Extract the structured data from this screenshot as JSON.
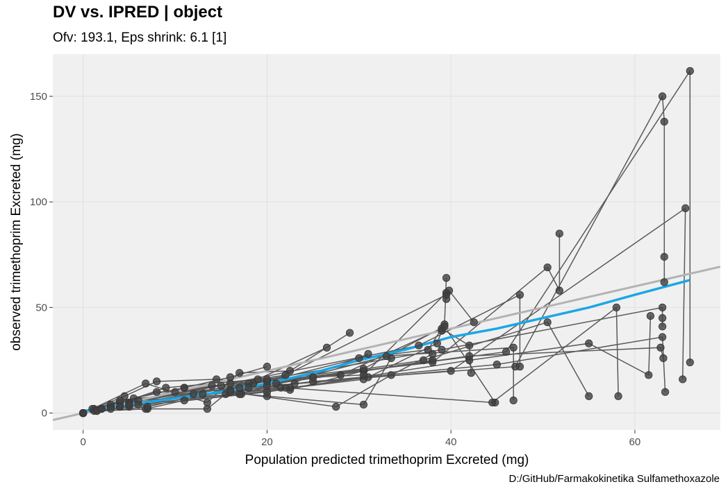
{
  "header": {
    "title": "DV vs. IPRED | object",
    "subtitle": "Ofv: 193.1, Eps shrink: 6.1 [1]",
    "caption": "D:/GitHub/Farmakokinetika Sulfamethoxazole"
  },
  "chart_data": {
    "type": "scatter",
    "xlabel": "Population predicted trimethoprim Excreted (mg)",
    "ylabel": "observed trimethoprim Excreted (mg)",
    "xlim": [
      -3.3,
      69.3
    ],
    "ylim": [
      -8,
      170
    ],
    "xticks": [
      0,
      20,
      40,
      60
    ],
    "yticks": [
      0,
      50,
      100,
      150
    ],
    "grid": true,
    "colors": {
      "panel": "#f0f0f0",
      "grid": "#e0e0e0",
      "points": "#404040",
      "lines": "#595959",
      "identity": "#b3b3b3",
      "smooth": "#1aa7e6"
    },
    "identity_line": {
      "slope": 1,
      "intercept": 0
    },
    "smooth": {
      "x": [
        0,
        5,
        10,
        15,
        20,
        25,
        30,
        35,
        40,
        45,
        50,
        55,
        60,
        66
      ],
      "y": [
        1,
        4,
        7,
        10,
        14,
        19,
        25,
        30,
        36,
        40,
        45,
        50,
        56,
        63
      ]
    },
    "subjects": [
      {
        "x": [
          0,
          1.2,
          5.5,
          11,
          16,
          20
        ],
        "y": [
          0,
          2,
          7,
          12,
          17,
          22
        ]
      },
      {
        "x": [
          0,
          1.5,
          7,
          13.5,
          15.5,
          26.5
        ],
        "y": [
          0,
          1,
          2,
          2,
          9,
          31
        ]
      },
      {
        "x": [
          0,
          4.5,
          8,
          14.5,
          20,
          29
        ],
        "y": [
          0,
          8,
          15,
          16,
          13,
          38
        ]
      },
      {
        "x": [
          0,
          1,
          6.8,
          13.5,
          17,
          22.5
        ],
        "y": [
          0,
          2,
          14,
          5,
          19,
          20
        ]
      },
      {
        "x": [
          0,
          2,
          8,
          16,
          21.5,
          31
        ],
        "y": [
          0,
          2,
          10,
          11,
          12,
          28
        ]
      },
      {
        "x": [
          0,
          1.2,
          6.8,
          11,
          17.2,
          30.5
        ],
        "y": [
          0,
          1,
          2,
          6,
          9,
          16
        ]
      },
      {
        "x": [
          0,
          7,
          18.5,
          22.5,
          30.5,
          38
        ],
        "y": [
          0,
          3,
          14,
          11,
          20,
          25
        ]
      },
      {
        "x": [
          0,
          4,
          11,
          20,
          30.5,
          33.5
        ],
        "y": [
          0,
          3,
          12,
          8,
          4,
          26
        ]
      },
      {
        "x": [
          0,
          5,
          16,
          27.5,
          33.5,
          38
        ],
        "y": [
          0,
          4,
          10,
          3,
          18,
          28
        ]
      },
      {
        "x": [
          0,
          2,
          13,
          22.5,
          31,
          38.5,
          39
        ],
        "y": [
          0,
          2,
          9,
          12,
          17,
          33,
          39
        ]
      },
      {
        "x": [
          0,
          3,
          12,
          20,
          30,
          37.5,
          39.3,
          39.5
        ],
        "y": [
          0,
          3,
          9,
          15,
          26,
          30,
          42,
          64
        ]
      },
      {
        "x": [
          0,
          1.5,
          9,
          19,
          30.5,
          39.5,
          39.5
        ],
        "y": [
          0,
          1,
          12,
          16,
          18,
          57,
          54
        ]
      },
      {
        "x": [
          0,
          2,
          10,
          22,
          39.5,
          39.8,
          42.5
        ],
        "y": [
          0,
          2,
          10,
          18,
          56,
          58,
          43
        ]
      },
      {
        "x": [
          0,
          3,
          14,
          28,
          39,
          42,
          42.2
        ],
        "y": [
          0,
          4,
          13,
          18,
          40,
          32,
          19
        ]
      },
      {
        "x": [
          0,
          5,
          15,
          30.5,
          39.3,
          44.8
        ],
        "y": [
          0,
          5,
          13,
          21,
          41,
          5
        ]
      },
      {
        "x": [
          0,
          6,
          17,
          33,
          46.8,
          46.8
        ],
        "y": [
          0,
          6,
          9,
          27,
          31,
          6
        ]
      },
      {
        "x": [
          0,
          4,
          16,
          36.5,
          47.5,
          47.5
        ],
        "y": [
          0,
          5,
          14,
          32,
          56,
          22
        ]
      },
      {
        "x": [
          0,
          5,
          18,
          38,
          50.5,
          51.8,
          51.8
        ],
        "y": [
          0,
          5,
          14,
          24,
          69,
          58,
          85
        ]
      },
      {
        "x": [
          0,
          4,
          17,
          37,
          50.5,
          55
        ],
        "y": [
          0,
          6,
          12,
          25,
          43,
          8
        ]
      },
      {
        "x": [
          0,
          6,
          22,
          44.5,
          58,
          58.2
        ],
        "y": [
          0,
          4,
          12,
          5,
          50,
          8
        ]
      },
      {
        "x": [
          0,
          5,
          20,
          42,
          55,
          61.5,
          61.7
        ],
        "y": [
          0,
          3,
          10,
          25,
          33,
          18,
          46
        ]
      },
      {
        "x": [
          0,
          5,
          25,
          47,
          63,
          63.2,
          63.2,
          63.2
        ],
        "y": [
          0,
          4,
          15,
          22,
          150,
          138,
          74,
          62
        ]
      },
      {
        "x": [
          0,
          4,
          20,
          39,
          63,
          63,
          63
        ],
        "y": [
          0,
          3,
          16,
          30,
          50,
          45,
          41
        ]
      },
      {
        "x": [
          0,
          5,
          23,
          45,
          63,
          63.3
        ],
        "y": [
          0,
          4,
          14,
          23,
          36,
          10
        ]
      },
      {
        "x": [
          0,
          4,
          21,
          42,
          62.8,
          63.1
        ],
        "y": [
          0,
          3,
          14,
          27,
          31,
          26
        ]
      },
      {
        "x": [
          0,
          3,
          18,
          40,
          65.5,
          65.2
        ],
        "y": [
          0,
          2,
          12,
          20,
          97,
          16
        ]
      },
      {
        "x": [
          0,
          4,
          25,
          46,
          66,
          66
        ],
        "y": [
          0,
          3,
          17,
          29,
          162,
          24
        ]
      }
    ]
  }
}
